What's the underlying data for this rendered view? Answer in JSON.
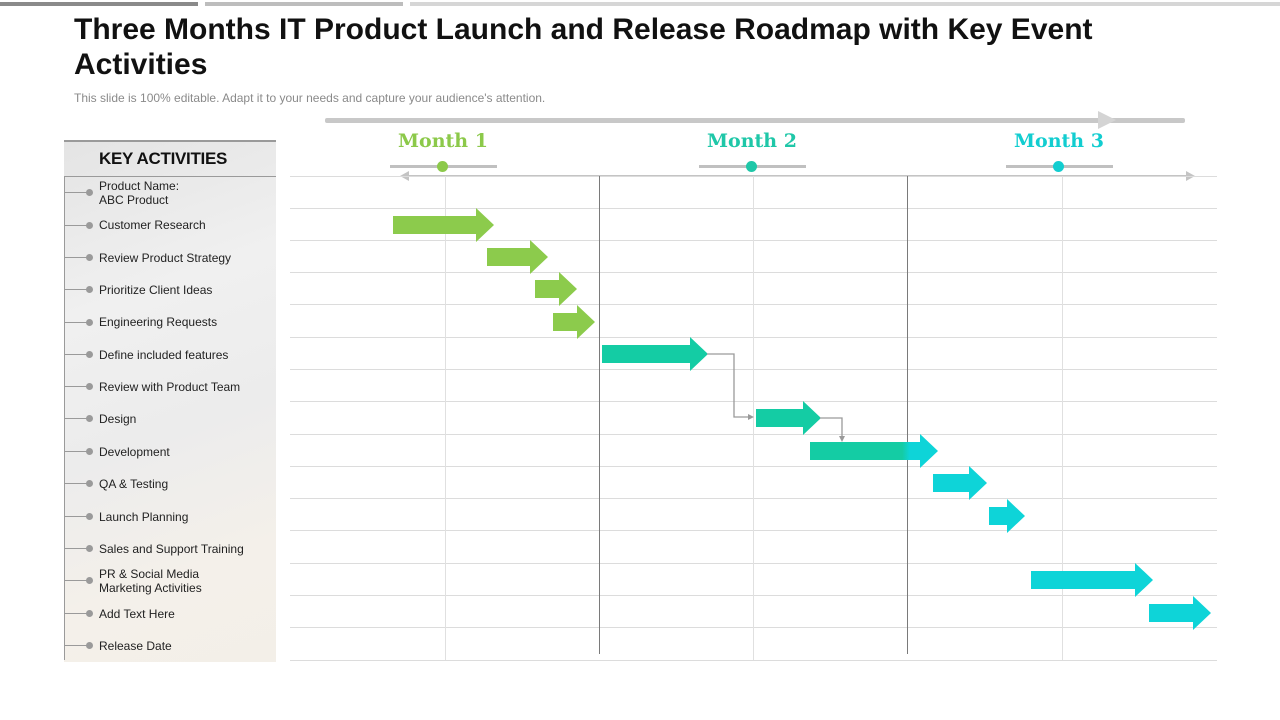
{
  "title": "Three Months IT Product Launch and Release Roadmap with Key Event Activities",
  "subtitle": "This slide is 100% editable. Adapt it to your needs and capture your audience's attention.",
  "panel_header": "KEY ACTIVITIES",
  "activities": [
    "Product Name:\nABC Product",
    "Customer Research",
    "Review Product Strategy",
    "Prioritize Client Ideas",
    "Engineering Requests",
    "Define included features",
    "Review with Product Team",
    "Design",
    "Development",
    "QA  & Testing",
    "Launch Planning",
    "Sales and Support Training",
    "PR & Social Media\nMarketing Activities",
    "Add Text Here",
    "Release Date"
  ],
  "months": [
    {
      "label": "Month 1",
      "color": "#8cc94a"
    },
    {
      "label": "Month 2",
      "color": "#1fc7a8"
    },
    {
      "label": "Month 3",
      "color": "#12cdd0"
    }
  ],
  "colors": {
    "green": "#8ccb4c",
    "teal": "#14cca4",
    "cyan": "#0ed4d8",
    "connector": "#9a9a9a"
  }
}
